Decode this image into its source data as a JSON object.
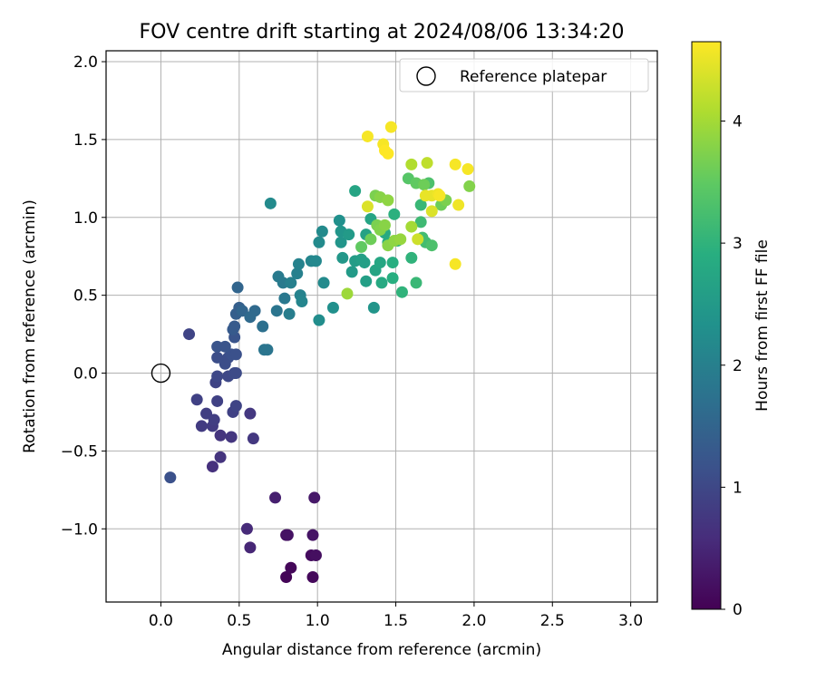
{
  "chart_data": {
    "type": "scatter",
    "title": "FOV centre drift starting at 2024/08/06 13:34:20",
    "xlabel": "Angular distance from reference (arcmin)",
    "ylabel": "Rotation from reference (arcmin)",
    "xlim": [
      -0.35,
      3.17
    ],
    "ylim": [
      -1.47,
      2.07
    ],
    "xticks": [
      0.0,
      0.5,
      1.0,
      1.5,
      2.0,
      2.5,
      3.0
    ],
    "xtick_labels": [
      "0.0",
      "0.5",
      "1.0",
      "1.5",
      "2.0",
      "2.5",
      "3.0"
    ],
    "yticks": [
      -1.0,
      -0.5,
      0.0,
      0.5,
      1.0,
      1.5,
      2.0
    ],
    "ytick_labels": [
      "−1.0",
      "−0.5",
      "0.0",
      "0.5",
      "1.0",
      "1.5",
      "2.0"
    ],
    "grid": true,
    "legend": {
      "position": "top-right",
      "label": "Reference platepar"
    },
    "reference_point": {
      "x": 0.0,
      "y": 0.0
    },
    "colorbar": {
      "label": "Hours from first FF file",
      "colormap": "viridis",
      "range": [
        0,
        4.65
      ],
      "ticks": [
        0,
        1,
        2,
        3,
        4
      ],
      "tick_labels": [
        "0",
        "1",
        "2",
        "3",
        "4"
      ]
    },
    "points": [
      {
        "x": 0.8,
        "y": -1.31,
        "c": 0.05
      },
      {
        "x": 0.83,
        "y": -1.25,
        "c": 0.08
      },
      {
        "x": 0.97,
        "y": -1.31,
        "c": 0.1
      },
      {
        "x": 0.96,
        "y": -1.17,
        "c": 0.15
      },
      {
        "x": 0.99,
        "y": -1.17,
        "c": 0.18
      },
      {
        "x": 0.8,
        "y": -1.04,
        "c": 0.2
      },
      {
        "x": 0.81,
        "y": -1.04,
        "c": 0.22
      },
      {
        "x": 0.97,
        "y": -1.04,
        "c": 0.25
      },
      {
        "x": 0.98,
        "y": -0.8,
        "c": 0.3
      },
      {
        "x": 0.73,
        "y": -0.8,
        "c": 0.4
      },
      {
        "x": 0.57,
        "y": -1.12,
        "c": 0.5
      },
      {
        "x": 0.55,
        "y": -1.0,
        "c": 0.55
      },
      {
        "x": 0.33,
        "y": -0.6,
        "c": 0.65
      },
      {
        "x": 0.38,
        "y": -0.54,
        "c": 0.7
      },
      {
        "x": 0.38,
        "y": -0.4,
        "c": 0.7
      },
      {
        "x": 0.45,
        "y": -0.41,
        "c": 0.72
      },
      {
        "x": 0.59,
        "y": -0.42,
        "c": 0.75
      },
      {
        "x": 0.57,
        "y": -0.26,
        "c": 0.75
      },
      {
        "x": 0.26,
        "y": -0.34,
        "c": 0.8
      },
      {
        "x": 0.33,
        "y": -0.34,
        "c": 0.8
      },
      {
        "x": 0.29,
        "y": -0.26,
        "c": 0.85
      },
      {
        "x": 0.34,
        "y": -0.3,
        "c": 0.85
      },
      {
        "x": 0.46,
        "y": -0.25,
        "c": 0.9
      },
      {
        "x": 0.23,
        "y": -0.17,
        "c": 0.9
      },
      {
        "x": 0.36,
        "y": -0.18,
        "c": 0.9
      },
      {
        "x": 0.48,
        "y": -0.21,
        "c": 0.95
      },
      {
        "x": 0.35,
        "y": -0.06,
        "c": 0.95
      },
      {
        "x": 0.36,
        "y": -0.02,
        "c": 1.0
      },
      {
        "x": 0.43,
        "y": -0.02,
        "c": 1.0
      },
      {
        "x": 0.47,
        "y": 0.0,
        "c": 1.05
      },
      {
        "x": 0.48,
        "y": 0.0,
        "c": 1.05
      },
      {
        "x": 0.41,
        "y": 0.06,
        "c": 1.1
      },
      {
        "x": 0.36,
        "y": 0.1,
        "c": 1.1
      },
      {
        "x": 0.43,
        "y": 0.1,
        "c": 1.1
      },
      {
        "x": 0.45,
        "y": 0.12,
        "c": 1.15
      },
      {
        "x": 0.48,
        "y": 0.12,
        "c": 1.15
      },
      {
        "x": 0.36,
        "y": 0.17,
        "c": 1.2
      },
      {
        "x": 0.41,
        "y": 0.17,
        "c": 1.2
      },
      {
        "x": 0.47,
        "y": 0.23,
        "c": 1.2
      },
      {
        "x": 0.18,
        "y": 0.25,
        "c": 0.95
      },
      {
        "x": 0.06,
        "y": -0.67,
        "c": 1.15
      },
      {
        "x": 0.46,
        "y": 0.28,
        "c": 1.3
      },
      {
        "x": 0.47,
        "y": 0.3,
        "c": 1.3
      },
      {
        "x": 0.48,
        "y": 0.38,
        "c": 1.4
      },
      {
        "x": 0.5,
        "y": 0.42,
        "c": 1.4
      },
      {
        "x": 0.49,
        "y": 0.55,
        "c": 1.5
      },
      {
        "x": 0.52,
        "y": 0.4,
        "c": 1.5
      },
      {
        "x": 0.57,
        "y": 0.36,
        "c": 1.6
      },
      {
        "x": 0.6,
        "y": 0.4,
        "c": 1.6
      },
      {
        "x": 0.65,
        "y": 0.3,
        "c": 1.7
      },
      {
        "x": 0.66,
        "y": 0.15,
        "c": 1.8
      },
      {
        "x": 0.68,
        "y": 0.15,
        "c": 1.8
      },
      {
        "x": 0.74,
        "y": 0.4,
        "c": 1.8
      },
      {
        "x": 0.79,
        "y": 0.48,
        "c": 1.85
      },
      {
        "x": 0.75,
        "y": 0.62,
        "c": 1.9
      },
      {
        "x": 0.78,
        "y": 0.58,
        "c": 1.9
      },
      {
        "x": 0.82,
        "y": 0.38,
        "c": 1.95
      },
      {
        "x": 0.83,
        "y": 0.58,
        "c": 2.0
      },
      {
        "x": 0.87,
        "y": 0.64,
        "c": 2.0
      },
      {
        "x": 0.88,
        "y": 0.7,
        "c": 2.05
      },
      {
        "x": 0.89,
        "y": 0.5,
        "c": 2.05
      },
      {
        "x": 0.9,
        "y": 0.46,
        "c": 2.1
      },
      {
        "x": 0.7,
        "y": 1.09,
        "c": 2.2
      },
      {
        "x": 0.96,
        "y": 0.72,
        "c": 2.1
      },
      {
        "x": 0.99,
        "y": 0.72,
        "c": 2.15
      },
      {
        "x": 1.01,
        "y": 0.84,
        "c": 2.2
      },
      {
        "x": 1.03,
        "y": 0.91,
        "c": 2.2
      },
      {
        "x": 1.04,
        "y": 0.58,
        "c": 2.2
      },
      {
        "x": 1.01,
        "y": 0.34,
        "c": 2.25
      },
      {
        "x": 1.1,
        "y": 0.42,
        "c": 2.3
      },
      {
        "x": 1.14,
        "y": 0.98,
        "c": 2.3
      },
      {
        "x": 1.15,
        "y": 0.91,
        "c": 2.4
      },
      {
        "x": 1.15,
        "y": 0.84,
        "c": 2.4
      },
      {
        "x": 1.16,
        "y": 0.74,
        "c": 2.45
      },
      {
        "x": 1.2,
        "y": 0.89,
        "c": 2.5
      },
      {
        "x": 1.22,
        "y": 0.65,
        "c": 2.5
      },
      {
        "x": 1.24,
        "y": 0.72,
        "c": 2.55
      },
      {
        "x": 1.28,
        "y": 0.73,
        "c": 2.6
      },
      {
        "x": 1.3,
        "y": 0.71,
        "c": 2.6
      },
      {
        "x": 1.31,
        "y": 0.59,
        "c": 2.6
      },
      {
        "x": 1.31,
        "y": 0.89,
        "c": 2.65
      },
      {
        "x": 1.34,
        "y": 0.99,
        "c": 2.7
      },
      {
        "x": 1.36,
        "y": 0.42,
        "c": 2.4
      },
      {
        "x": 1.37,
        "y": 0.66,
        "c": 2.7
      },
      {
        "x": 1.4,
        "y": 0.71,
        "c": 2.75
      },
      {
        "x": 1.41,
        "y": 0.58,
        "c": 2.8
      },
      {
        "x": 1.43,
        "y": 0.9,
        "c": 2.8
      },
      {
        "x": 1.45,
        "y": 0.84,
        "c": 2.85
      },
      {
        "x": 1.48,
        "y": 0.71,
        "c": 2.9
      },
      {
        "x": 1.48,
        "y": 0.61,
        "c": 2.9
      },
      {
        "x": 1.49,
        "y": 1.02,
        "c": 2.95
      },
      {
        "x": 1.51,
        "y": 0.85,
        "c": 2.95
      },
      {
        "x": 1.54,
        "y": 0.52,
        "c": 3.0
      },
      {
        "x": 1.24,
        "y": 1.17,
        "c": 2.7
      },
      {
        "x": 1.6,
        "y": 0.74,
        "c": 3.0
      },
      {
        "x": 1.63,
        "y": 0.58,
        "c": 3.1
      },
      {
        "x": 1.66,
        "y": 1.08,
        "c": 3.1
      },
      {
        "x": 1.66,
        "y": 0.97,
        "c": 3.15
      },
      {
        "x": 1.67,
        "y": 0.87,
        "c": 3.2
      },
      {
        "x": 1.69,
        "y": 0.84,
        "c": 3.2
      },
      {
        "x": 1.71,
        "y": 1.22,
        "c": 3.3
      },
      {
        "x": 1.73,
        "y": 0.82,
        "c": 3.3
      },
      {
        "x": 1.58,
        "y": 1.25,
        "c": 3.4
      },
      {
        "x": 1.63,
        "y": 1.22,
        "c": 3.5
      },
      {
        "x": 1.68,
        "y": 1.21,
        "c": 3.6
      },
      {
        "x": 1.79,
        "y": 1.08,
        "c": 3.6
      },
      {
        "x": 1.82,
        "y": 1.11,
        "c": 3.7
      },
      {
        "x": 1.97,
        "y": 1.2,
        "c": 3.75
      },
      {
        "x": 1.37,
        "y": 1.14,
        "c": 3.7
      },
      {
        "x": 1.4,
        "y": 1.13,
        "c": 3.8
      },
      {
        "x": 1.45,
        "y": 1.11,
        "c": 3.85
      },
      {
        "x": 1.28,
        "y": 0.81,
        "c": 3.5
      },
      {
        "x": 1.34,
        "y": 0.86,
        "c": 3.6
      },
      {
        "x": 1.38,
        "y": 0.95,
        "c": 3.7
      },
      {
        "x": 1.4,
        "y": 0.92,
        "c": 3.75
      },
      {
        "x": 1.43,
        "y": 0.95,
        "c": 3.8
      },
      {
        "x": 1.45,
        "y": 0.82,
        "c": 3.8
      },
      {
        "x": 1.49,
        "y": 0.85,
        "c": 3.85
      },
      {
        "x": 1.53,
        "y": 0.86,
        "c": 3.9
      },
      {
        "x": 1.19,
        "y": 0.51,
        "c": 3.95
      },
      {
        "x": 1.6,
        "y": 0.94,
        "c": 4.0
      },
      {
        "x": 1.6,
        "y": 1.34,
        "c": 4.1
      },
      {
        "x": 1.7,
        "y": 1.35,
        "c": 4.2
      },
      {
        "x": 1.64,
        "y": 0.86,
        "c": 4.3
      },
      {
        "x": 1.73,
        "y": 1.04,
        "c": 4.4
      },
      {
        "x": 1.32,
        "y": 1.07,
        "c": 4.4
      },
      {
        "x": 1.69,
        "y": 1.14,
        "c": 4.5
      },
      {
        "x": 1.73,
        "y": 1.14,
        "c": 4.5
      },
      {
        "x": 1.77,
        "y": 1.15,
        "c": 4.55
      },
      {
        "x": 1.78,
        "y": 1.14,
        "c": 4.6
      },
      {
        "x": 1.9,
        "y": 1.08,
        "c": 4.55
      },
      {
        "x": 1.88,
        "y": 0.7,
        "c": 4.6
      },
      {
        "x": 1.88,
        "y": 1.34,
        "c": 4.6
      },
      {
        "x": 1.96,
        "y": 1.31,
        "c": 4.6
      },
      {
        "x": 1.32,
        "y": 1.52,
        "c": 4.6
      },
      {
        "x": 1.42,
        "y": 1.47,
        "c": 4.6
      },
      {
        "x": 1.43,
        "y": 1.43,
        "c": 4.65
      },
      {
        "x": 1.45,
        "y": 1.41,
        "c": 4.65
      },
      {
        "x": 1.47,
        "y": 1.58,
        "c": 4.6
      }
    ]
  }
}
